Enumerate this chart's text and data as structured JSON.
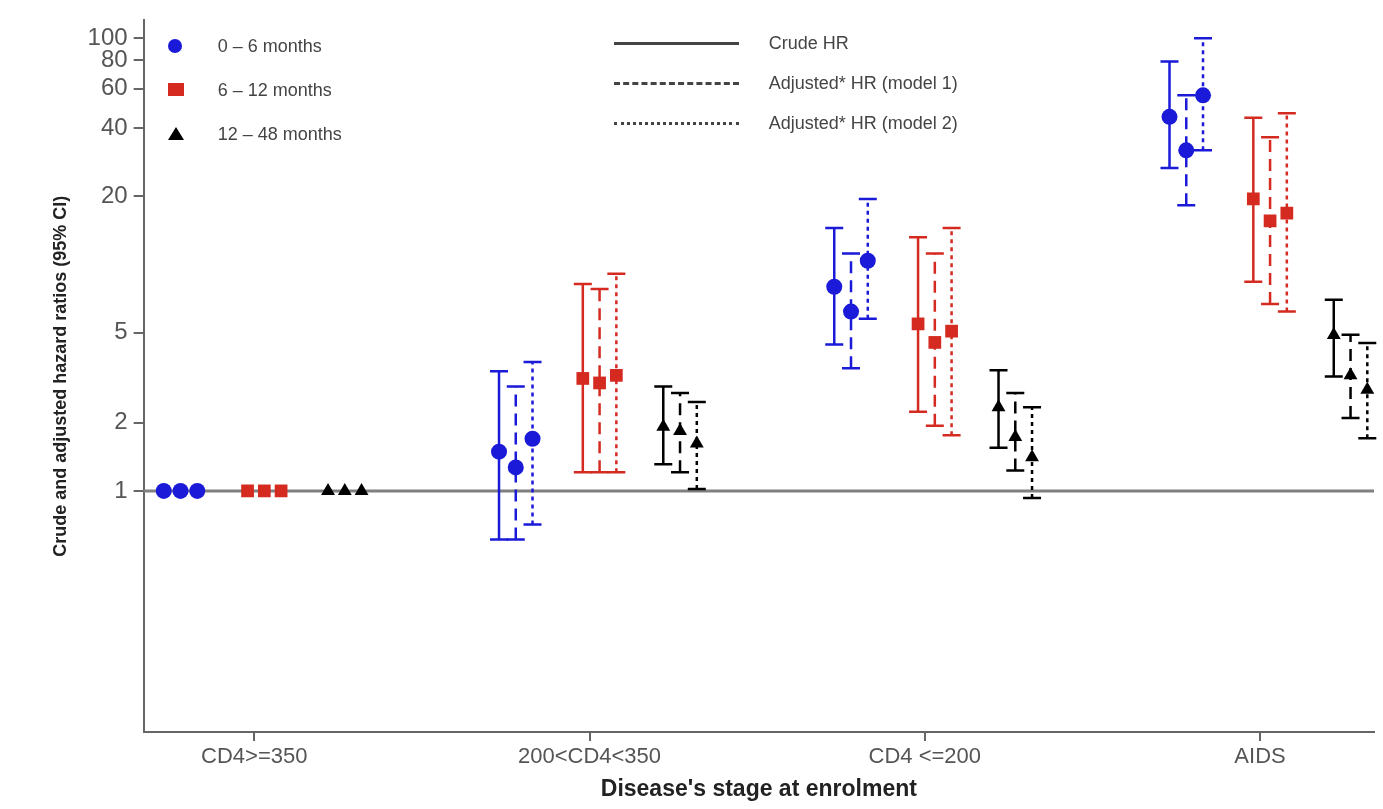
{
  "chart_data": {
    "type": "scatter",
    "xlabel": "Disease's stage at enrolment",
    "ylabel": "Crude and adjusted hazard ratios (95% CI)",
    "categories": [
      "CD4>=350",
      "200<CD4<350",
      "CD4 <=200",
      "AIDS"
    ],
    "log": "y",
    "ylim": [
      0.086,
      120
    ],
    "yticks": [
      1,
      2,
      5,
      20,
      40,
      60,
      80,
      100
    ],
    "grid": false,
    "legend": "top left",
    "ref_lines": [
      {
        "axis": "y",
        "value": 1,
        "color": "#808080"
      }
    ],
    "annotations": [
      "Crude HR",
      "Adjusted* HR (model 1)",
      "Adjusted* HR (model 2)"
    ],
    "series": [
      {
        "name": "0 – 6 months",
        "color": "#1a1ad8",
        "marker": "circle",
        "line_style": "solid",
        "values": [
          1,
          1.49,
          7.98,
          45
        ],
        "errors": [
          null,
          [
            0.61,
            3.38
          ],
          [
            4.43,
            14.5
          ],
          [
            26.7,
            79
          ]
        ]
      },
      {
        "color": "#1a1ad8",
        "marker": "circle",
        "line_style": "dashed",
        "values": [
          1,
          1.27,
          6.2,
          32
        ],
        "errors": [
          null,
          [
            0.61,
            2.89
          ],
          [
            3.48,
            11.2
          ],
          [
            18.3,
            56
          ]
        ]
      },
      {
        "color": "#1a1ad8",
        "marker": "circle",
        "line_style": "dotted",
        "values": [
          1,
          1.7,
          10.4,
          56
        ],
        "errors": [
          null,
          [
            0.71,
            3.71
          ],
          [
            5.77,
            19.5
          ],
          [
            32,
            100
          ]
        ]
      },
      {
        "name": "6 – 12 months",
        "color": "#d42a20",
        "marker": "square",
        "line_style": "solid",
        "values": [
          1,
          3.14,
          5.47,
          19.5
        ],
        "errors": [
          null,
          [
            1.21,
            8.2
          ],
          [
            2.24,
            13.2
          ],
          [
            8.4,
            44.6
          ]
        ]
      },
      {
        "color": "#d42a20",
        "marker": "square",
        "line_style": "dashed",
        "values": [
          1,
          3.0,
          4.53,
          15.6
        ],
        "errors": [
          null,
          [
            1.21,
            7.8
          ],
          [
            1.94,
            11.2
          ],
          [
            6.7,
            36.5
          ]
        ]
      },
      {
        "color": "#d42a20",
        "marker": "square",
        "line_style": "dotted",
        "values": [
          1,
          3.24,
          5.08,
          16.9
        ],
        "errors": [
          null,
          [
            1.21,
            9.1
          ],
          [
            1.76,
            14.5
          ],
          [
            6.2,
            46.7
          ]
        ]
      },
      {
        "name": "12 – 48 months",
        "color": "#000000",
        "marker": "triangle",
        "line_style": "solid",
        "values": [
          1,
          1.92,
          2.34,
          4.88
        ],
        "errors": [
          null,
          [
            1.31,
            2.89
          ],
          [
            1.55,
            3.41
          ],
          [
            3.2,
            7.0
          ]
        ]
      },
      {
        "color": "#000000",
        "marker": "triangle",
        "line_style": "dashed",
        "values": [
          1,
          1.84,
          1.73,
          3.24
        ],
        "errors": [
          null,
          [
            1.21,
            2.71
          ],
          [
            1.23,
            2.71
          ],
          [
            2.1,
            4.9
          ]
        ]
      },
      {
        "color": "#000000",
        "marker": "triangle",
        "line_style": "dotted",
        "values": [
          1,
          1.62,
          1.41,
          2.8
        ],
        "errors": [
          null,
          [
            1.02,
            2.47
          ],
          [
            0.93,
            2.34
          ],
          [
            1.71,
            4.5
          ]
        ]
      }
    ]
  }
}
